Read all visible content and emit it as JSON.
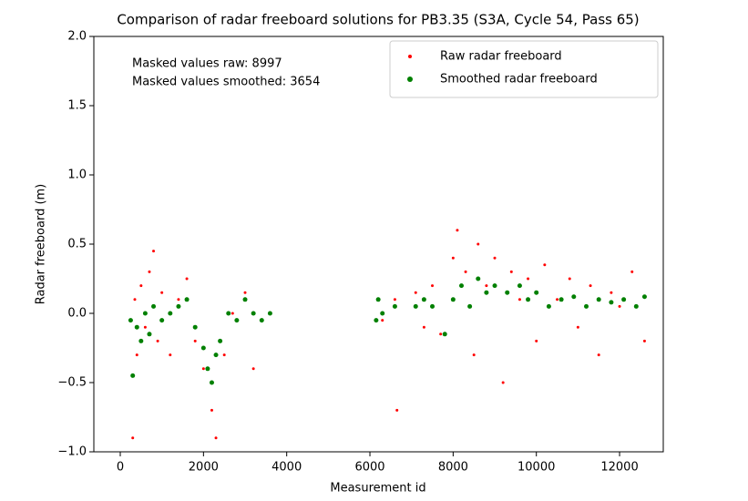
{
  "chart_data": {
    "type": "scatter",
    "title": "Comparison of radar freeboard solutions for PB3.35 (S3A, Cycle 54, Pass 65)",
    "x_label": "Measurement id",
    "y_label": "Radar freeboard (m)",
    "annotations": [
      "Masked values raw: 8997",
      "Masked values smoothed: 3654"
    ],
    "xlim": [
      -635,
      13050
    ],
    "xticks": [
      0,
      2000,
      4000,
      6000,
      8000,
      10000,
      12000
    ],
    "ylim": [
      -1.0,
      2.0
    ],
    "yticks": [
      {
        "value": -1.0,
        "label": "−1.0"
      },
      {
        "value": -0.5,
        "label": "−0.5"
      },
      {
        "value": 0.0,
        "label": "0.0"
      },
      {
        "value": 0.5,
        "label": "0.5"
      },
      {
        "value": 1.0,
        "label": "1.0"
      },
      {
        "value": 1.5,
        "label": "1.5"
      },
      {
        "value": 2.0,
        "label": "2.0"
      }
    ],
    "legend": "upper right",
    "series": [
      {
        "name": "Raw radar freeboard",
        "color": "#ff0000",
        "marker_size": 1.5,
        "x": [
          300,
          350,
          400,
          500,
          600,
          700,
          800,
          900,
          1000,
          1200,
          1400,
          1600,
          1800,
          2000,
          2200,
          2300,
          2500,
          2700,
          3000,
          3200,
          6200,
          6300,
          6600,
          6650,
          7100,
          7300,
          7500,
          7700,
          8000,
          8100,
          8300,
          8500,
          8600,
          8800,
          9000,
          9200,
          9400,
          9600,
          9800,
          10000,
          10200,
          10500,
          10800,
          11000,
          11300,
          11500,
          11800,
          12000,
          12300,
          12600
        ],
        "values": [
          -0.9,
          0.1,
          -0.3,
          0.2,
          -0.1,
          0.3,
          0.45,
          -0.2,
          0.15,
          -0.3,
          0.1,
          0.25,
          -0.2,
          -0.4,
          -0.7,
          -0.9,
          -0.3,
          0.0,
          0.15,
          -0.4,
          0.1,
          -0.05,
          0.1,
          -0.7,
          0.15,
          -0.1,
          0.2,
          -0.15,
          0.4,
          0.6,
          0.3,
          -0.3,
          0.5,
          0.2,
          0.4,
          -0.5,
          0.3,
          0.1,
          0.25,
          -0.2,
          0.35,
          0.1,
          0.25,
          -0.1,
          0.2,
          -0.3,
          0.15,
          0.05,
          0.3,
          -0.2
        ]
      },
      {
        "name": "Smoothed radar freeboard",
        "color": "#008000",
        "marker_size": 2.5,
        "x": [
          250,
          300,
          400,
          500,
          600,
          700,
          800,
          1000,
          1200,
          1400,
          1600,
          1800,
          2000,
          2100,
          2200,
          2300,
          2400,
          2600,
          2800,
          3000,
          3200,
          3400,
          3600,
          6150,
          6200,
          6300,
          6600,
          7100,
          7300,
          7500,
          7800,
          8000,
          8200,
          8400,
          8600,
          8800,
          9000,
          9300,
          9600,
          9800,
          10000,
          10300,
          10600,
          10900,
          11200,
          11500,
          11800,
          12100,
          12400,
          12600
        ],
        "values": [
          -0.05,
          -0.45,
          -0.1,
          -0.2,
          0.0,
          -0.15,
          0.05,
          -0.05,
          0.0,
          0.05,
          0.1,
          -0.1,
          -0.25,
          -0.4,
          -0.5,
          -0.3,
          -0.2,
          0.0,
          -0.05,
          0.1,
          0.0,
          -0.05,
          0.0,
          -0.05,
          0.1,
          0.0,
          0.05,
          0.05,
          0.1,
          0.05,
          -0.15,
          0.1,
          0.2,
          0.05,
          0.25,
          0.15,
          0.2,
          0.15,
          0.2,
          0.1,
          0.15,
          0.05,
          0.1,
          0.12,
          0.05,
          0.1,
          0.08,
          0.1,
          0.05,
          0.12
        ]
      }
    ]
  }
}
